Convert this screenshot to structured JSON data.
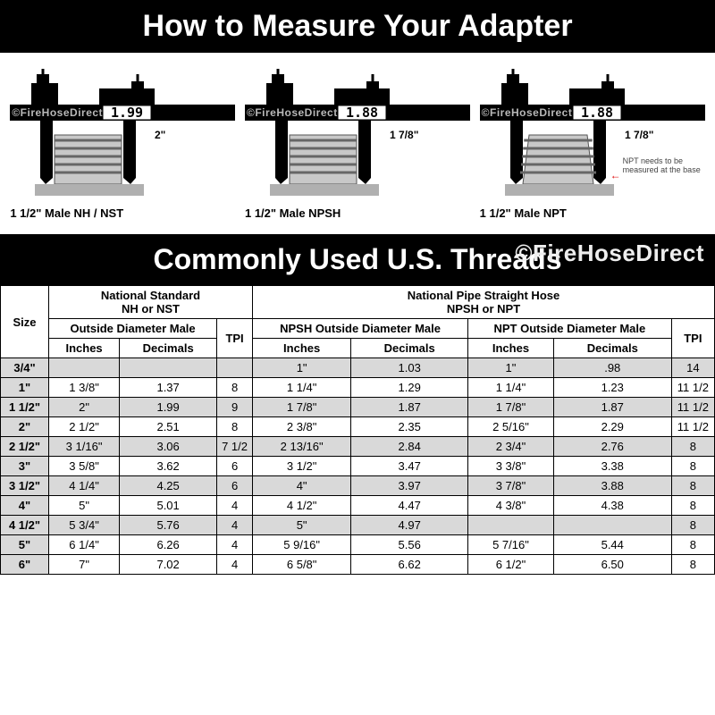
{
  "titles": {
    "main": "How to Measure Your Adapter",
    "table": "Commonly Used U.S. Threads"
  },
  "diagrams": [
    {
      "reading": "1.99",
      "dim": "2\"",
      "label": "1 1/2\" Male NH / NST",
      "note": "",
      "tapered": false,
      "watermark": "©FireHoseDirect"
    },
    {
      "reading": "1.88",
      "dim": "1 7/8\"",
      "label": "1 1/2\" Male NPSH",
      "note": "",
      "tapered": false,
      "watermark": "©FireHoseDirect"
    },
    {
      "reading": "1.88",
      "dim": "1 7/8\"",
      "label": "1 1/2\" Male NPT",
      "note": "NPT needs to be measured at the base",
      "tapered": true,
      "watermark": "©FireHoseDirect"
    }
  ],
  "watermark_big": "©FireHoseDirect",
  "table": {
    "group_headers": {
      "size": "Size",
      "nh": {
        "line1": "National Standard",
        "line2": "NH or NST",
        "od": "Outside Diameter Male",
        "tpi": "TPI"
      },
      "np": {
        "line1": "National Pipe Straight Hose",
        "line2": "NPSH or NPT",
        "npsh_od": "NPSH Outside Diameter Male",
        "npt_od": "NPT Outside Diameter Male",
        "tpi": "TPI"
      },
      "units": {
        "in": "Inches",
        "dec": "Decimals"
      }
    },
    "rows": [
      {
        "size": "3/4\"",
        "nh_in": "",
        "nh_dec": "",
        "nh_tpi": "",
        "npsh_in": "1\"",
        "npsh_dec": "1.03",
        "npt_in": "1\"",
        "npt_dec": ".98",
        "np_tpi": "14"
      },
      {
        "size": "1\"",
        "nh_in": "1 3/8\"",
        "nh_dec": "1.37",
        "nh_tpi": "8",
        "npsh_in": "1 1/4\"",
        "npsh_dec": "1.29",
        "npt_in": "1 1/4\"",
        "npt_dec": "1.23",
        "np_tpi": "11 1/2"
      },
      {
        "size": "1 1/2\"",
        "nh_in": "2\"",
        "nh_dec": "1.99",
        "nh_tpi": "9",
        "npsh_in": "1 7/8\"",
        "npsh_dec": "1.87",
        "npt_in": "1 7/8\"",
        "npt_dec": "1.87",
        "np_tpi": "11 1/2"
      },
      {
        "size": "2\"",
        "nh_in": "2 1/2\"",
        "nh_dec": "2.51",
        "nh_tpi": "8",
        "npsh_in": "2 3/8\"",
        "npsh_dec": "2.35",
        "npt_in": "2 5/16\"",
        "npt_dec": "2.29",
        "np_tpi": "11 1/2"
      },
      {
        "size": "2 1/2\"",
        "nh_in": "3 1/16\"",
        "nh_dec": "3.06",
        "nh_tpi": "7 1/2",
        "npsh_in": "2 13/16\"",
        "npsh_dec": "2.84",
        "npt_in": "2 3/4\"",
        "npt_dec": "2.76",
        "np_tpi": "8"
      },
      {
        "size": "3\"",
        "nh_in": "3 5/8\"",
        "nh_dec": "3.62",
        "nh_tpi": "6",
        "npsh_in": "3 1/2\"",
        "npsh_dec": "3.47",
        "npt_in": "3 3/8\"",
        "npt_dec": "3.38",
        "np_tpi": "8"
      },
      {
        "size": "3 1/2\"",
        "nh_in": "4 1/4\"",
        "nh_dec": "4.25",
        "nh_tpi": "6",
        "npsh_in": "4\"",
        "npsh_dec": "3.97",
        "npt_in": "3 7/8\"",
        "npt_dec": "3.88",
        "np_tpi": "8"
      },
      {
        "size": "4\"",
        "nh_in": "5\"",
        "nh_dec": "5.01",
        "nh_tpi": "4",
        "npsh_in": "4 1/2\"",
        "npsh_dec": "4.47",
        "npt_in": "4 3/8\"",
        "npt_dec": "4.38",
        "np_tpi": "8"
      },
      {
        "size": "4 1/2\"",
        "nh_in": "5 3/4\"",
        "nh_dec": "5.76",
        "nh_tpi": "4",
        "npsh_in": "5\"",
        "npsh_dec": "4.97",
        "npt_in": "",
        "npt_dec": "",
        "np_tpi": "8"
      },
      {
        "size": "5\"",
        "nh_in": "6 1/4\"",
        "nh_dec": "6.26",
        "nh_tpi": "4",
        "npsh_in": "5 9/16\"",
        "npsh_dec": "5.56",
        "npt_in": "5 7/16\"",
        "npt_dec": "5.44",
        "np_tpi": "8"
      },
      {
        "size": "6\"",
        "nh_in": "7\"",
        "nh_dec": "7.02",
        "nh_tpi": "4",
        "npsh_in": "6 5/8\"",
        "npsh_dec": "6.62",
        "npt_in": "6 1/2\"",
        "npt_dec": "6.50",
        "np_tpi": "8"
      }
    ],
    "shaded_rows": [
      0,
      2,
      4,
      6,
      8
    ]
  },
  "colors": {
    "black": "#000000",
    "white": "#ffffff",
    "shade": "#d9d9d9",
    "thread_body": "#c8c8c8",
    "base_fill": "#b0b0b0",
    "red": "#d00000"
  }
}
